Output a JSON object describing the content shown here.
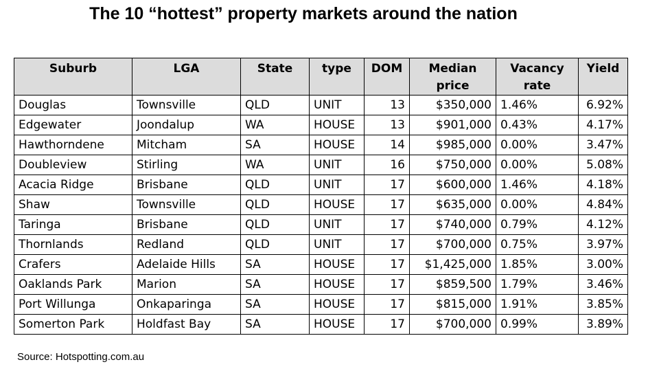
{
  "title": "The 10 “hottest” property markets around the nation",
  "columns": {
    "suburb": "Suburb",
    "lga": "LGA",
    "state": "State",
    "type": "type",
    "dom": "DOM",
    "median_line1": "Median",
    "median_line2": "price",
    "vacancy_line1": "Vacancy",
    "vacancy_line2": "rate",
    "yield": "Yield"
  },
  "rows": [
    {
      "suburb": "Douglas",
      "lga": "Townsville",
      "state": "QLD",
      "type": "UNIT",
      "dom": "13",
      "median_price": "$350,000",
      "vacancy_rate": "1.46%",
      "yield": "6.92%"
    },
    {
      "suburb": "Edgewater",
      "lga": "Joondalup",
      "state": "WA",
      "type": "HOUSE",
      "dom": "13",
      "median_price": "$901,000",
      "vacancy_rate": "0.43%",
      "yield": "4.17%"
    },
    {
      "suburb": "Hawthorndene",
      "lga": "Mitcham",
      "state": "SA",
      "type": "HOUSE",
      "dom": "14",
      "median_price": "$985,000",
      "vacancy_rate": "0.00%",
      "yield": "3.47%"
    },
    {
      "suburb": "Doubleview",
      "lga": "Stirling",
      "state": "WA",
      "type": "UNIT",
      "dom": "16",
      "median_price": "$750,000",
      "vacancy_rate": "0.00%",
      "yield": "5.08%"
    },
    {
      "suburb": "Acacia Ridge",
      "lga": "Brisbane",
      "state": "QLD",
      "type": "UNIT",
      "dom": "17",
      "median_price": "$600,000",
      "vacancy_rate": "1.46%",
      "yield": "4.18%"
    },
    {
      "suburb": "Shaw",
      "lga": "Townsville",
      "state": "QLD",
      "type": "HOUSE",
      "dom": "17",
      "median_price": "$635,000",
      "vacancy_rate": "0.00%",
      "yield": "4.84%"
    },
    {
      "suburb": "Taringa",
      "lga": "Brisbane",
      "state": "QLD",
      "type": "UNIT",
      "dom": "17",
      "median_price": "$740,000",
      "vacancy_rate": "0.79%",
      "yield": "4.12%"
    },
    {
      "suburb": "Thornlands",
      "lga": "Redland",
      "state": "QLD",
      "type": "UNIT",
      "dom": "17",
      "median_price": "$700,000",
      "vacancy_rate": "0.75%",
      "yield": "3.97%"
    },
    {
      "suburb": "Crafers",
      "lga": "Adelaide Hills",
      "state": "SA",
      "type": "HOUSE",
      "dom": "17",
      "median_price": "$1,425,000",
      "vacancy_rate": "1.85%",
      "yield": "3.00%"
    },
    {
      "suburb": "Oaklands Park",
      "lga": "Marion",
      "state": "SA",
      "type": "HOUSE",
      "dom": "17",
      "median_price": "$859,500",
      "vacancy_rate": "1.79%",
      "yield": "3.46%"
    },
    {
      "suburb": "Port Willunga",
      "lga": "Onkaparinga",
      "state": "SA",
      "type": "HOUSE",
      "dom": "17",
      "median_price": "$815,000",
      "vacancy_rate": "1.91%",
      "yield": "3.85%"
    },
    {
      "suburb": "Somerton Park",
      "lga": "Holdfast Bay",
      "state": "SA",
      "type": "HOUSE",
      "dom": "17",
      "median_price": "$700,000",
      "vacancy_rate": "0.99%",
      "yield": "3.89%"
    }
  ],
  "source": "Source: Hotspotting.com.au",
  "colors": {
    "header_background": "#dcdcdc",
    "border": "#000000",
    "text": "#000000",
    "background": "#ffffff"
  }
}
